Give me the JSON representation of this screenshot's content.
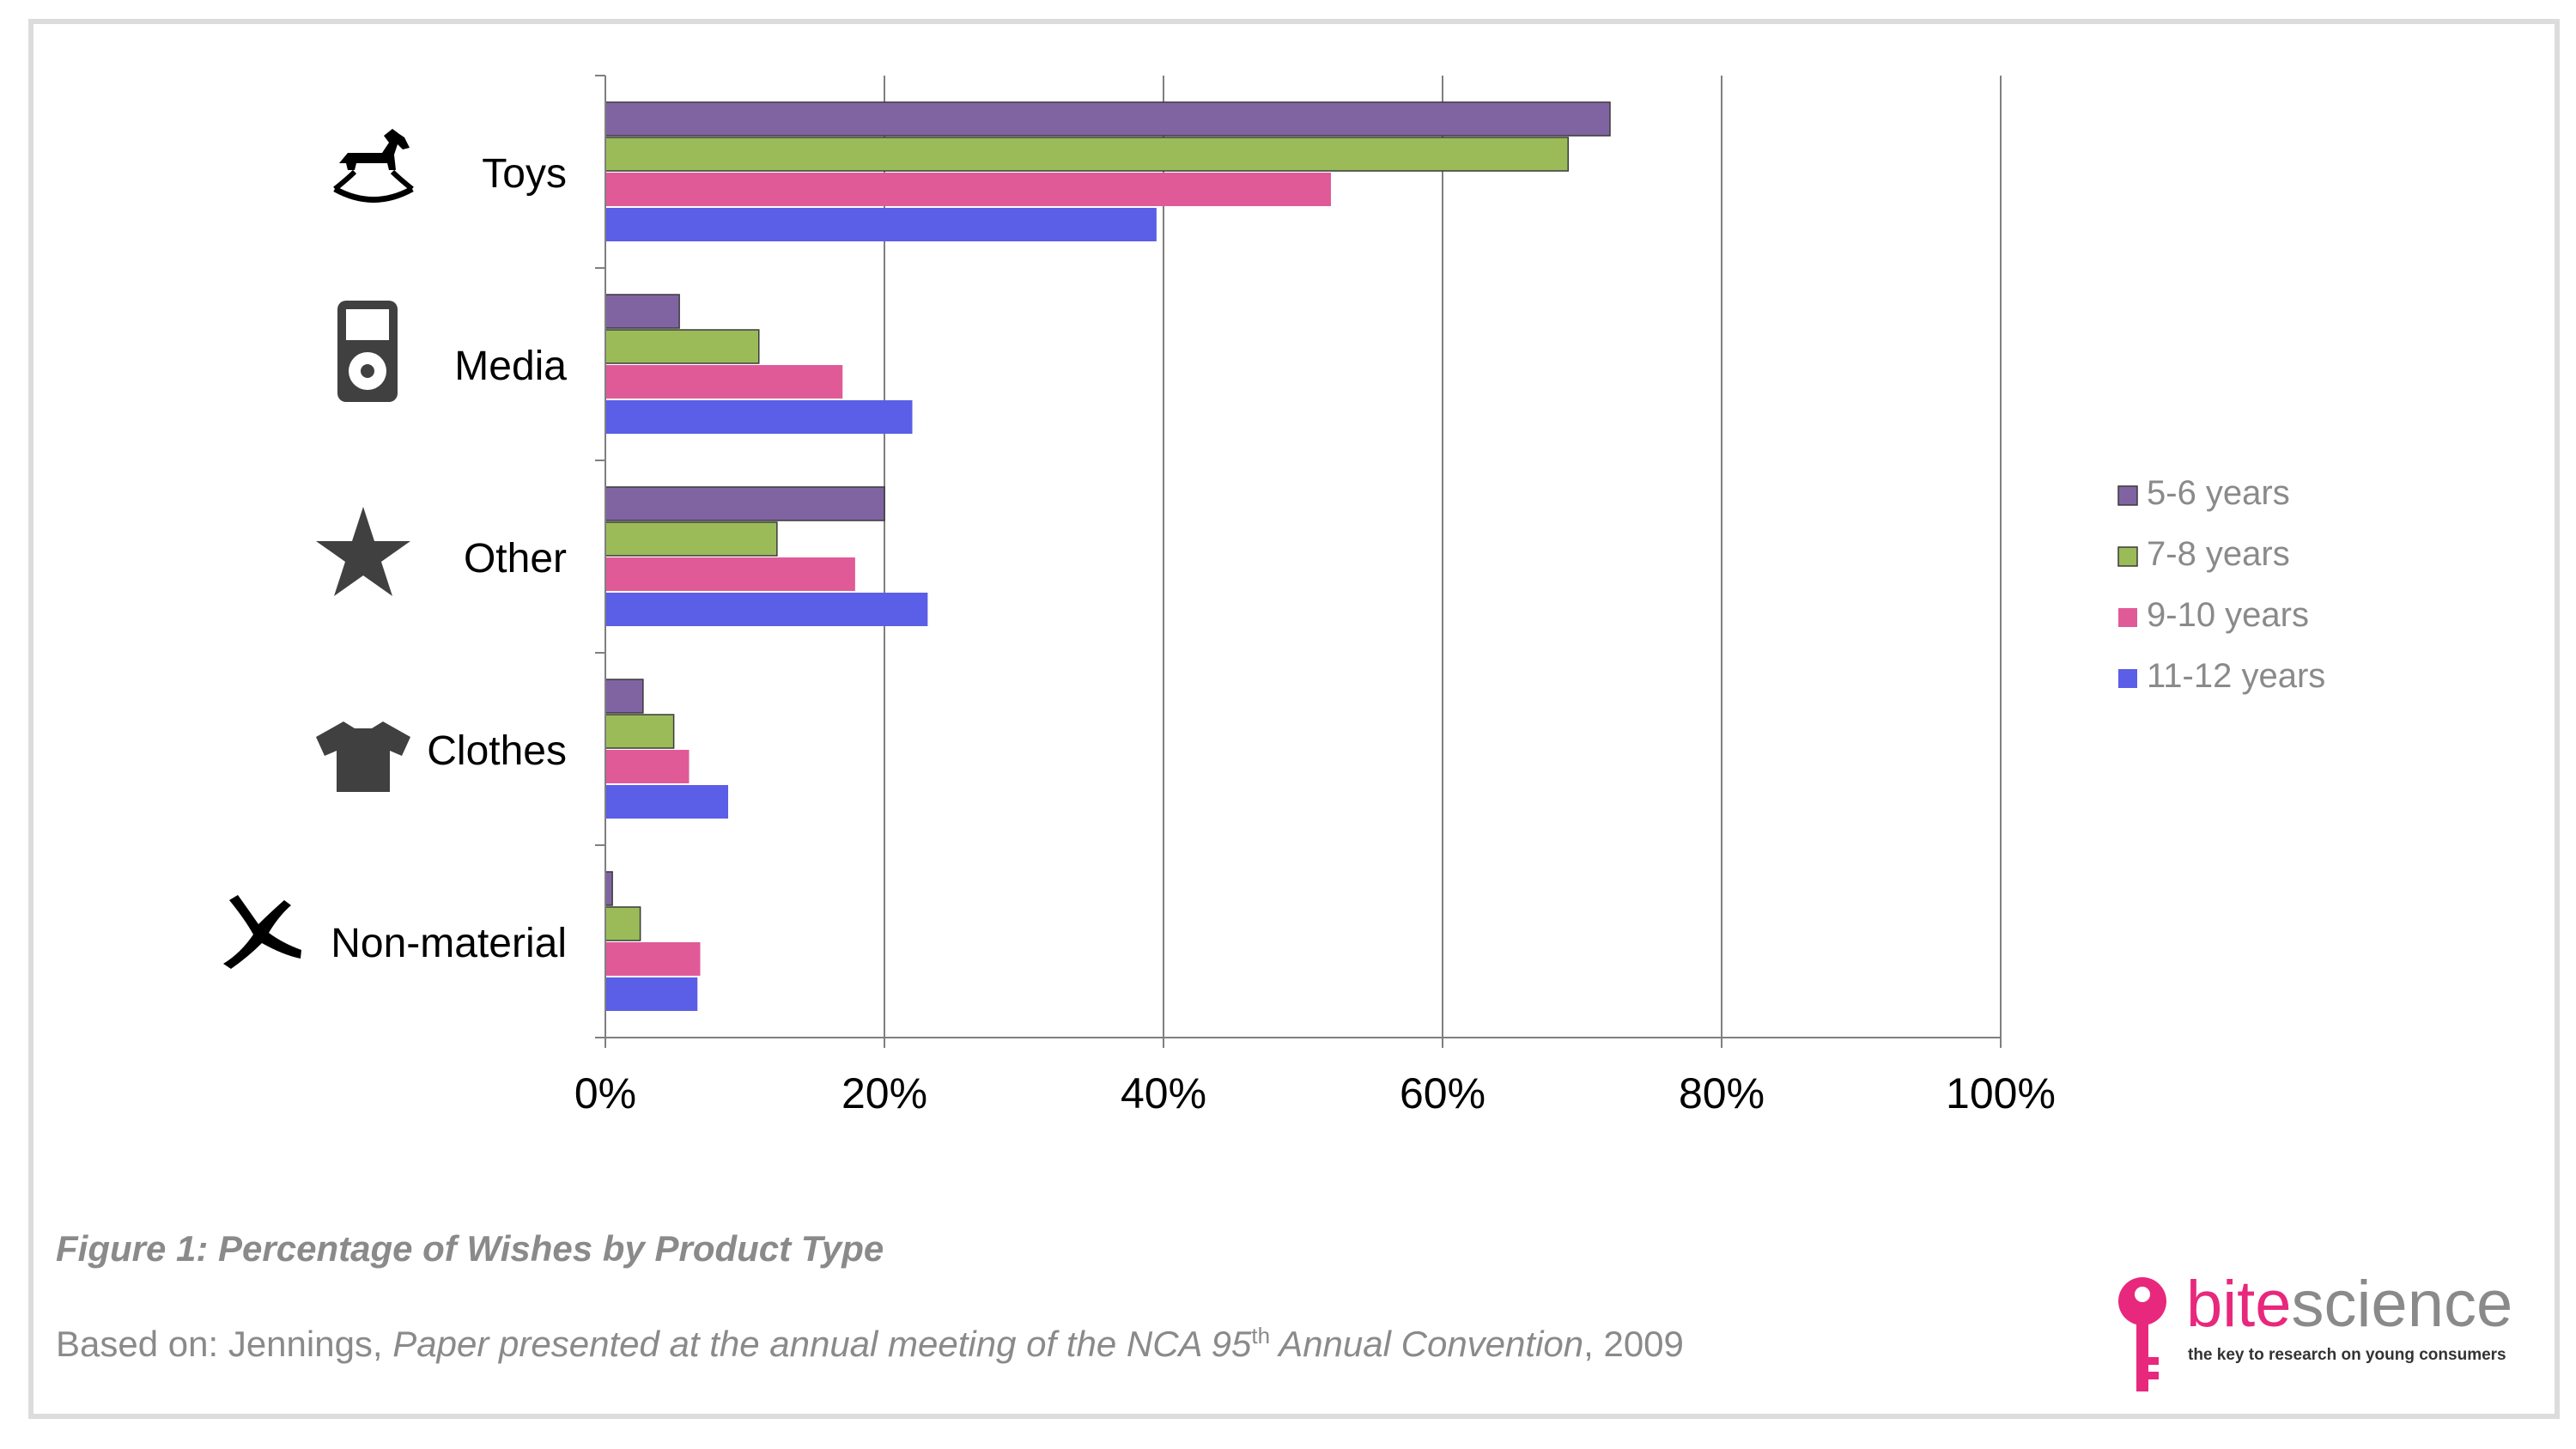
{
  "chart_data": {
    "type": "bar",
    "orientation": "horizontal",
    "categories": [
      "Toys",
      "Media",
      "Other",
      "Clothes",
      "Non-material"
    ],
    "category_icons": [
      "rocking-horse-icon",
      "media-player-icon",
      "star-icon",
      "tshirt-icon",
      "x-mark-icon"
    ],
    "series": [
      {
        "name": "5-6 years",
        "color": "#8064a2",
        "values": [
          72,
          5.3,
          20,
          2.7,
          0.5
        ]
      },
      {
        "name": "7-8 years",
        "color": "#9bbb59",
        "values": [
          69,
          11,
          12.3,
          4.9,
          2.5
        ]
      },
      {
        "name": "9-10 years",
        "color": "#e05a98",
        "values": [
          52,
          17,
          17.9,
          6,
          6.8
        ]
      },
      {
        "name": "11-12 years",
        "color": "#5b5ee6",
        "values": [
          39.5,
          22,
          23.1,
          8.8,
          6.6
        ]
      }
    ],
    "xlim": [
      0,
      100
    ],
    "x_ticks": [
      "0%",
      "20%",
      "40%",
      "60%",
      "80%",
      "100%"
    ],
    "grid": true,
    "legend_position": "right"
  },
  "caption": "Figure 1: Percentage of Wishes by Product Type",
  "source": {
    "prefix": "Based on: Jennings, ",
    "italic_part1": "Paper presented at the annual meeting of the NCA 95",
    "superscript": "th",
    "italic_part2": " Annual Convention",
    "suffix": ", 2009"
  },
  "logo": {
    "word_bite": "bite",
    "word_science": "science",
    "tagline": "the key to research on young consumers"
  },
  "colors": {
    "brand": "#e8287c",
    "grid": "#7f7f7f",
    "legend_text": "#8a8a8a"
  }
}
